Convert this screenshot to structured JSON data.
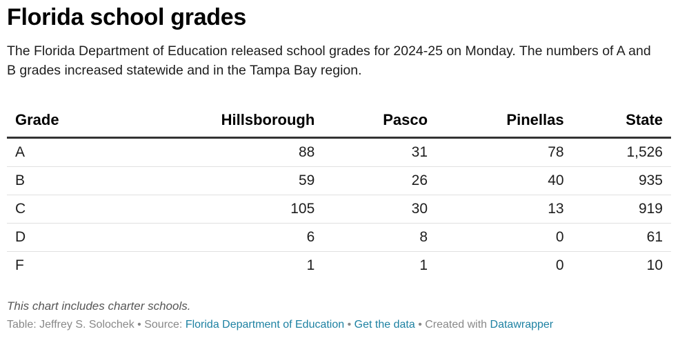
{
  "chart_data": {
    "type": "table",
    "title": "Florida school grades",
    "description": "The Florida Department of Education released school grades for 2024-25 on Monday. The numbers of A and B grades increased statewide and in the Tampa Bay region.",
    "columns": [
      "Grade",
      "Hillsborough",
      "Pasco",
      "Pinellas",
      "State"
    ],
    "rows": [
      {
        "grade": "A",
        "hillsborough": 88,
        "pasco": 31,
        "pinellas": 78,
        "state": 1526,
        "state_label": "1,526"
      },
      {
        "grade": "B",
        "hillsborough": 59,
        "pasco": 26,
        "pinellas": 40,
        "state": 935,
        "state_label": "935"
      },
      {
        "grade": "C",
        "hillsborough": 105,
        "pasco": 30,
        "pinellas": 13,
        "state": 919,
        "state_label": "919"
      },
      {
        "grade": "D",
        "hillsborough": 6,
        "pasco": 8,
        "pinellas": 0,
        "state": 61,
        "state_label": "61"
      },
      {
        "grade": "F",
        "hillsborough": 1,
        "pasco": 1,
        "pinellas": 0,
        "state": 10,
        "state_label": "10"
      }
    ]
  },
  "notes": "This chart includes charter schools.",
  "footer": {
    "table_label": "Table: Jeffrey S. Solochek",
    "source_prefix": "Source:",
    "source_link": "Florida Department of Education",
    "get_data": "Get the data",
    "created_with_prefix": "Created with",
    "created_with_link": "Datawrapper",
    "separator": "•"
  },
  "colors": {
    "link": "#1d81a2",
    "header_rule": "#333333",
    "row_rule": "#e0e0e0",
    "footer_text": "#888888"
  }
}
